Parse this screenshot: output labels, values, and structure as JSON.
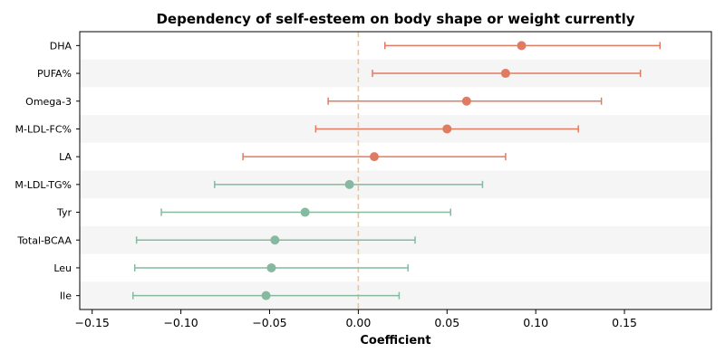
{
  "chart_data": {
    "type": "forest",
    "title": "Dependency of self-esteem on body shape or weight currently",
    "xlabel": "Coefficient",
    "ylabel": "",
    "xlim": [
      -0.157,
      0.199
    ],
    "xticks": [
      -0.15,
      -0.1,
      -0.05,
      0.0,
      0.05,
      0.1,
      0.15
    ],
    "xtick_labels": [
      "−0.15",
      "−0.10",
      "−0.05",
      "0.00",
      "0.05",
      "0.10",
      "0.15"
    ],
    "reference_line": 0.0,
    "grid": false,
    "alternating_row_shading": true,
    "colors": {
      "positive": "#e07b62",
      "negative": "#86b9a0",
      "reference": "#f5c28a",
      "row_shade": "#f5f5f5"
    },
    "categories": [
      "DHA",
      "PUFA%",
      "Omega-3",
      "M-LDL-FC%",
      "LA",
      "M-LDL-TG%",
      "Tyr",
      "Total-BCAA",
      "Leu",
      "Ile"
    ],
    "estimates": [
      0.092,
      0.083,
      0.061,
      0.05,
      0.009,
      -0.005,
      -0.03,
      -0.047,
      -0.049,
      -0.052
    ],
    "ci_low": [
      0.015,
      0.008,
      -0.017,
      -0.024,
      -0.065,
      -0.081,
      -0.111,
      -0.125,
      -0.126,
      -0.127
    ],
    "ci_high": [
      0.17,
      0.159,
      0.137,
      0.124,
      0.083,
      0.07,
      0.052,
      0.032,
      0.028,
      0.023
    ]
  }
}
